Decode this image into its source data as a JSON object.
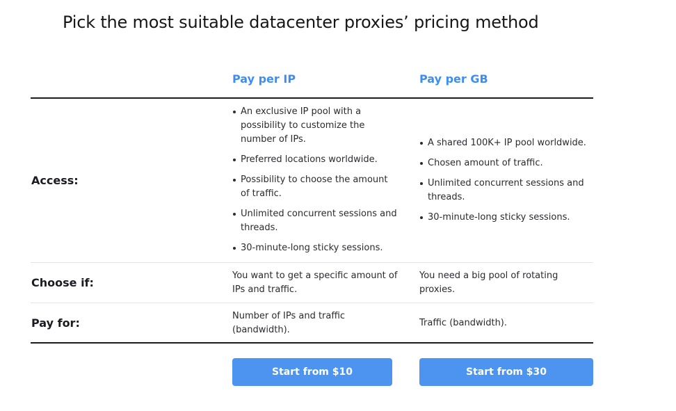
{
  "title": "Pick the most suitable datacenter proxies’ pricing method",
  "columns": {
    "ip": {
      "heading": "Pay per IP"
    },
    "gb": {
      "heading": "Pay per GB"
    }
  },
  "rows": {
    "access": {
      "label": "Access:",
      "ip": [
        "An exclusive IP pool with a possibility to customize the number of IPs.",
        "Preferred locations worldwide.",
        "Possibility to choose the amount of traffic.",
        "Unlimited concurrent sessions and threads.",
        "30-minute-long sticky sessions."
      ],
      "gb": [
        "A shared 100K+ IP pool worldwide.",
        "Chosen amount of traffic.",
        "Unlimited concurrent sessions and threads.",
        "30-minute-long sticky sessions."
      ]
    },
    "choose_if": {
      "label": "Choose if:",
      "ip": "You want to get a specific amount of IPs and traffic.",
      "gb": "You need a big pool of rotating proxies."
    },
    "pay_for": {
      "label": "Pay for:",
      "ip": "Number of IPs and traffic (bandwidth).",
      "gb": "Traffic (bandwidth)."
    }
  },
  "buttons": {
    "ip": "Start from $10",
    "gb": "Start from $30"
  },
  "colors": {
    "accent": "#3d8ef2",
    "button": "#4d94f1",
    "text": "#1b1c22"
  }
}
